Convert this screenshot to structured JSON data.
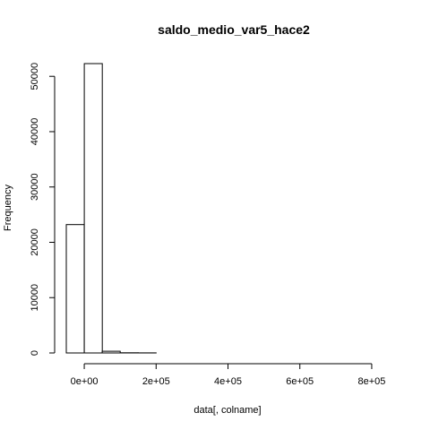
{
  "chart_data": {
    "type": "bar",
    "title": "saldo_medio_var5_hace2",
    "xlabel": "data[, colname]",
    "ylabel": "Frequency",
    "bins": [
      {
        "x0": -50000,
        "x1": 0,
        "count": 23200
      },
      {
        "x0": 0,
        "x1": 50000,
        "count": 52300
      },
      {
        "x0": 50000,
        "x1": 100000,
        "count": 300
      },
      {
        "x0": 100000,
        "x1": 150000,
        "count": 40
      },
      {
        "x0": 150000,
        "x1": 200000,
        "count": 12
      },
      {
        "x0": 200000,
        "x1": 250000,
        "count": 6
      },
      {
        "x0": 250000,
        "x1": 300000,
        "count": 4
      },
      {
        "x0": 300000,
        "x1": 350000,
        "count": 3
      },
      {
        "x0": 350000,
        "x1": 400000,
        "count": 2
      },
      {
        "x0": 400000,
        "x1": 450000,
        "count": 2
      },
      {
        "x0": 450000,
        "x1": 500000,
        "count": 1
      },
      {
        "x0": 500000,
        "x1": 550000,
        "count": 1
      },
      {
        "x0": 550000,
        "x1": 600000,
        "count": 1
      },
      {
        "x0": 600000,
        "x1": 650000,
        "count": 1
      },
      {
        "x0": 650000,
        "x1": 700000,
        "count": 1
      },
      {
        "x0": 700000,
        "x1": 750000,
        "count": 0
      },
      {
        "x0": 750000,
        "x1": 800000,
        "count": 0
      },
      {
        "x0": 800000,
        "x1": 850000,
        "count": 1
      }
    ],
    "xlim": [
      -50000,
      850000
    ],
    "ylim": [
      0,
      52300
    ],
    "x_ticks": [
      {
        "value": 0,
        "label": "0e+00"
      },
      {
        "value": 200000,
        "label": "2e+05"
      },
      {
        "value": 400000,
        "label": "4e+05"
      },
      {
        "value": 600000,
        "label": "6e+05"
      },
      {
        "value": 800000,
        "label": "8e+05"
      }
    ],
    "y_ticks": [
      {
        "value": 0,
        "label": "0"
      },
      {
        "value": 10000,
        "label": "10000"
      },
      {
        "value": 20000,
        "label": "20000"
      },
      {
        "value": 30000,
        "label": "30000"
      },
      {
        "value": 40000,
        "label": "40000"
      },
      {
        "value": 50000,
        "label": "50000"
      }
    ],
    "grid": false,
    "legend": "none"
  }
}
